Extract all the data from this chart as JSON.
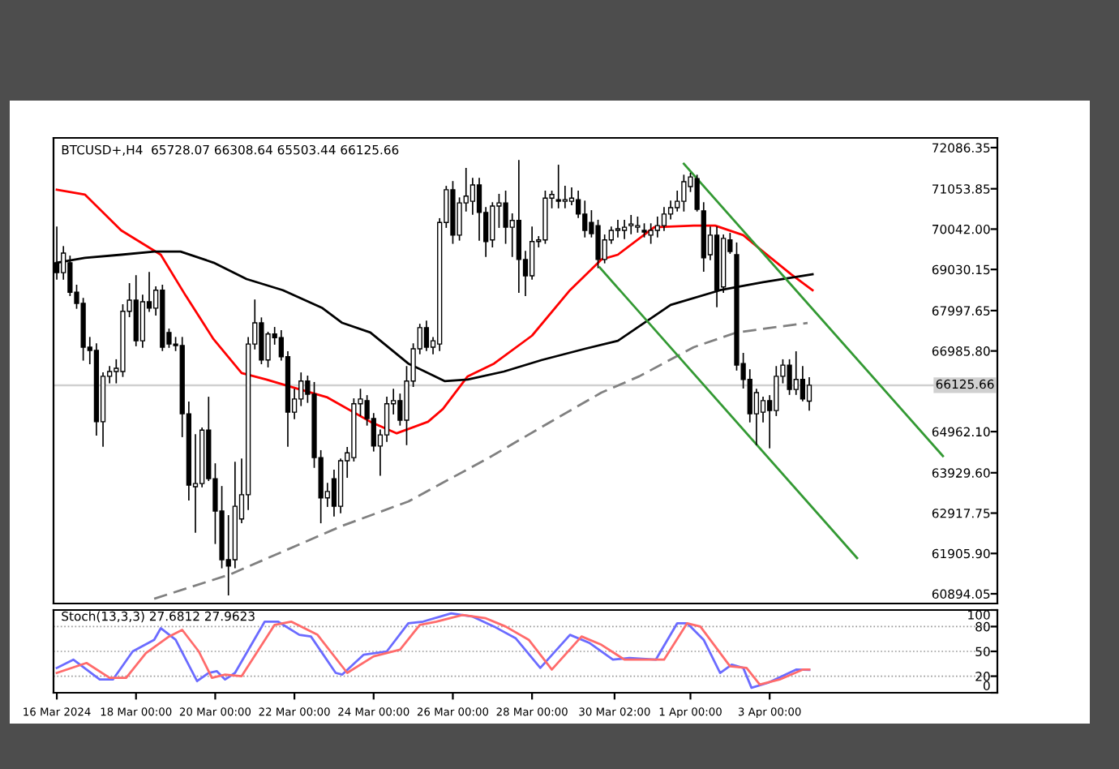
{
  "chart_data": [
    {
      "type": "candlestick",
      "title": "BTCUSD+,H4  65728.07 66308.64 65503.44 66125.66",
      "x": [
        "2024-03-16T00:00",
        "2024-03-16T04:00",
        "2024-03-16T08:00",
        "2024-03-16T12:00",
        "2024-03-16T16:00",
        "2024-03-16T20:00",
        "2024-03-17T00:00",
        "2024-03-17T04:00",
        "2024-03-17T08:00",
        "2024-03-17T12:00",
        "2024-03-17T16:00",
        "2024-03-17T20:00",
        "2024-03-18T00:00",
        "2024-03-18T04:00",
        "2024-03-18T08:00",
        "2024-03-18T12:00",
        "2024-03-18T16:00",
        "2024-03-18T20:00",
        "2024-03-19T00:00",
        "2024-03-19T04:00",
        "2024-03-19T08:00",
        "2024-03-19T12:00",
        "2024-03-19T16:00",
        "2024-03-19T20:00",
        "2024-03-20T00:00",
        "2024-03-20T04:00",
        "2024-03-20T08:00",
        "2024-03-20T12:00",
        "2024-03-20T16:00",
        "2024-03-20T20:00",
        "2024-03-21T00:00",
        "2024-03-21T04:00",
        "2024-03-21T08:00",
        "2024-03-21T12:00",
        "2024-03-21T16:00",
        "2024-03-21T20:00",
        "2024-03-22T00:00",
        "2024-03-22T04:00",
        "2024-03-22T08:00",
        "2024-03-22T12:00",
        "2024-03-22T16:00",
        "2024-03-22T20:00",
        "2024-03-23T00:00",
        "2024-03-23T04:00",
        "2024-03-23T08:00",
        "2024-03-23T12:00",
        "2024-03-23T16:00",
        "2024-03-23T20:00",
        "2024-03-24T00:00",
        "2024-03-24T04:00",
        "2024-03-24T08:00",
        "2024-03-24T12:00",
        "2024-03-24T16:00",
        "2024-03-24T20:00",
        "2024-03-25T00:00",
        "2024-03-25T04:00",
        "2024-03-25T08:00",
        "2024-03-25T12:00",
        "2024-03-25T16:00",
        "2024-03-25T20:00",
        "2024-03-26T00:00",
        "2024-03-26T04:00",
        "2024-03-26T08:00",
        "2024-03-26T12:00",
        "2024-03-26T16:00",
        "2024-03-26T20:00",
        "2024-03-27T00:00",
        "2024-03-27T04:00",
        "2024-03-27T08:00",
        "2024-03-27T12:00",
        "2024-03-27T16:00",
        "2024-03-27T20:00",
        "2024-03-28T00:00",
        "2024-03-28T04:00",
        "2024-03-28T08:00",
        "2024-03-28T12:00",
        "2024-03-28T16:00",
        "2024-03-28T20:00",
        "2024-03-29T00:00",
        "2024-03-29T04:00",
        "2024-03-29T08:00",
        "2024-03-29T12:00",
        "2024-03-29T16:00",
        "2024-03-29T20:00",
        "2024-03-30T00:00",
        "2024-03-30T04:00",
        "2024-03-30T08:00",
        "2024-03-30T12:00",
        "2024-03-30T16:00",
        "2024-03-30T20:00",
        "2024-03-31T00:00",
        "2024-03-31T04:00",
        "2024-03-31T08:00",
        "2024-03-31T12:00",
        "2024-03-31T16:00",
        "2024-03-31T20:00",
        "2024-04-01T00:00",
        "2024-04-01T04:00",
        "2024-04-01T08:00",
        "2024-04-01T12:00",
        "2024-04-01T16:00",
        "2024-04-01T20:00",
        "2024-04-02T00:00",
        "2024-04-02T04:00",
        "2024-04-02T08:00",
        "2024-04-02T12:00",
        "2024-04-02T16:00",
        "2024-04-02T20:00",
        "2024-04-03T00:00",
        "2024-04-03T04:00",
        "2024-04-03T08:00",
        "2024-04-03T12:00",
        "2024-04-03T16:00",
        "2024-04-03T20:00",
        "2024-04-04T00:00"
      ],
      "ohlc": [
        [
          69200,
          70090,
          68790,
          68950
        ],
        [
          68950,
          69600,
          68790,
          69440
        ],
        [
          69200,
          69360,
          68380,
          68460
        ],
        [
          68460,
          68630,
          68060,
          68180
        ],
        [
          68180,
          68300,
          66760,
          67080
        ],
        [
          67080,
          67320,
          66670,
          67000
        ],
        [
          67000,
          67160,
          64880,
          65210
        ],
        [
          65210,
          66430,
          64600,
          66350
        ],
        [
          66350,
          66590,
          66190,
          66470
        ],
        [
          66470,
          66760,
          66190,
          66550
        ],
        [
          66470,
          68140,
          66350,
          67980
        ],
        [
          67980,
          68670,
          67850,
          68260
        ],
        [
          68260,
          68870,
          67120,
          67240
        ],
        [
          67240,
          68380,
          67080,
          68220
        ],
        [
          68220,
          68950,
          67980,
          68060
        ],
        [
          68060,
          68590,
          67890,
          68510
        ],
        [
          68510,
          68630,
          67000,
          67080
        ],
        [
          67450,
          67530,
          67080,
          67160
        ],
        [
          67160,
          67320,
          67000,
          67120
        ],
        [
          67120,
          67320,
          64840,
          65410
        ],
        [
          65410,
          65700,
          63250,
          63620
        ],
        [
          63580,
          64880,
          62440,
          63660
        ],
        [
          63660,
          65050,
          63580,
          65000
        ],
        [
          65000,
          65820,
          63740,
          63780
        ],
        [
          63780,
          64150,
          62160,
          62970
        ],
        [
          62970,
          63580,
          61550,
          61750
        ],
        [
          61750,
          62850,
          60870,
          61590
        ],
        [
          61750,
          64190,
          61550,
          63090
        ],
        [
          62770,
          64270,
          62680,
          63380
        ],
        [
          63380,
          67320,
          63010,
          67160
        ],
        [
          67160,
          68260,
          67040,
          67690
        ],
        [
          67690,
          67810,
          66670,
          66760
        ],
        [
          66760,
          67450,
          66590,
          67410
        ],
        [
          67410,
          67570,
          67160,
          67320
        ],
        [
          67320,
          67490,
          66760,
          66840
        ],
        [
          66840,
          66960,
          64600,
          65450
        ],
        [
          65450,
          66020,
          65290,
          65780
        ],
        [
          65780,
          66430,
          65620,
          66230
        ],
        [
          66230,
          66350,
          65700,
          65900
        ],
        [
          65900,
          66190,
          64070,
          64310
        ],
        [
          64310,
          64480,
          62680,
          63300
        ],
        [
          63300,
          63660,
          63090,
          63460
        ],
        [
          63780,
          63990,
          62850,
          63090
        ],
        [
          63090,
          64270,
          62930,
          64230
        ],
        [
          64230,
          64560,
          63820,
          64430
        ],
        [
          64310,
          65780,
          64230,
          65660
        ],
        [
          65660,
          66020,
          65370,
          65780
        ],
        [
          65740,
          65860,
          65130,
          65290
        ],
        [
          65290,
          65410,
          64480,
          64600
        ],
        [
          64600,
          65000,
          63870,
          64880
        ],
        [
          64880,
          65820,
          64720,
          65660
        ],
        [
          65660,
          66020,
          65410,
          65740
        ],
        [
          65740,
          65900,
          65130,
          65250
        ],
        [
          65250,
          66590,
          64640,
          66230
        ],
        [
          66230,
          67160,
          66100,
          67040
        ],
        [
          67040,
          67650,
          66920,
          67570
        ],
        [
          67570,
          67730,
          67000,
          67080
        ],
        [
          67080,
          67320,
          66920,
          67240
        ],
        [
          67160,
          70300,
          67000,
          70210
        ],
        [
          70210,
          71110,
          70090,
          71030
        ],
        [
          71030,
          71230,
          69690,
          69890
        ],
        [
          69890,
          70820,
          69770,
          70700
        ],
        [
          70700,
          71560,
          70500,
          70870
        ],
        [
          70740,
          71310,
          70420,
          71150
        ],
        [
          71150,
          71310,
          69770,
          70460
        ],
        [
          70460,
          70580,
          69360,
          69730
        ],
        [
          69770,
          70700,
          69600,
          70620
        ],
        [
          70620,
          70910,
          70090,
          70700
        ],
        [
          70700,
          70990,
          69690,
          70090
        ],
        [
          70090,
          70420,
          69360,
          70260
        ],
        [
          70260,
          71760,
          68460,
          69280
        ],
        [
          69280,
          69480,
          68380,
          68870
        ],
        [
          68870,
          70090,
          68790,
          69730
        ],
        [
          69730,
          69850,
          69600,
          69770
        ],
        [
          69770,
          70990,
          69690,
          70820
        ],
        [
          70820,
          70990,
          70580,
          70910
        ],
        [
          70780,
          71640,
          70580,
          70740
        ],
        [
          70740,
          71110,
          70580,
          70780
        ],
        [
          70740,
          71070,
          70660,
          70820
        ],
        [
          70780,
          70990,
          70340,
          70420
        ],
        [
          70420,
          70740,
          69850,
          70010
        ],
        [
          70210,
          70500,
          69850,
          69930
        ],
        [
          70130,
          70260,
          69080,
          69280
        ],
        [
          69280,
          69890,
          69200,
          69770
        ],
        [
          69770,
          70090,
          69690,
          70010
        ],
        [
          70010,
          70260,
          69850,
          70050
        ],
        [
          70010,
          70260,
          69810,
          70090
        ],
        [
          70130,
          70380,
          69930,
          70170
        ],
        [
          70090,
          70340,
          69970,
          70130
        ],
        [
          70010,
          70170,
          69850,
          69970
        ],
        [
          69890,
          70170,
          69690,
          70010
        ],
        [
          70010,
          70340,
          69850,
          70130
        ],
        [
          70130,
          70580,
          70010,
          70420
        ],
        [
          70420,
          70740,
          70300,
          70580
        ],
        [
          70580,
          70990,
          70500,
          70740
        ],
        [
          70740,
          71390,
          70500,
          71230
        ],
        [
          71110,
          71440,
          70990,
          71350
        ],
        [
          71310,
          71390,
          70500,
          70540
        ],
        [
          70500,
          70700,
          68990,
          69320
        ],
        [
          69400,
          70090,
          69280,
          69890
        ],
        [
          69890,
          70090,
          68100,
          68510
        ],
        [
          68590,
          69890,
          68460,
          69810
        ],
        [
          69770,
          69930,
          69440,
          69480
        ],
        [
          69400,
          69690,
          66510,
          66630
        ],
        [
          66670,
          66920,
          66060,
          66270
        ],
        [
          66270,
          66510,
          65210,
          65410
        ],
        [
          65410,
          66020,
          64640,
          65940
        ],
        [
          65450,
          65820,
          65210,
          65740
        ],
        [
          65740,
          65860,
          64560,
          65490
        ],
        [
          65490,
          66590,
          65370,
          66350
        ],
        [
          66350,
          66760,
          66190,
          66630
        ],
        [
          66630,
          66760,
          65900,
          66020
        ],
        [
          66020,
          66960,
          65900,
          66270
        ],
        [
          66270,
          66590,
          65740,
          65780
        ],
        [
          65728.07,
          66308.64,
          65503.44,
          66125.66
        ]
      ],
      "series": [
        {
          "type": "line",
          "color": "#ff0000",
          "x": [
            "2024-03-16T00:00",
            "2024-03-16T17:00",
            "2024-03-17T15:00",
            "2024-03-18T15:00",
            "2024-03-19T06:00",
            "2024-03-19T23:00",
            "2024-03-20T16:00",
            "2024-03-21T07:00",
            "2024-03-22T00:00",
            "2024-03-22T20:00",
            "2024-03-23T22:00",
            "2024-03-24T14:00",
            "2024-03-25T09:00",
            "2024-03-25T18:00",
            "2024-03-26T09:00",
            "2024-03-27T01:00",
            "2024-03-28T00:00",
            "2024-03-28T23:00",
            "2024-03-29T18:00",
            "2024-03-30T04:00",
            "2024-03-31T02:00",
            "2024-04-01T02:00",
            "2024-04-01T15:00",
            "2024-04-02T08:00",
            "2024-04-02T20:00",
            "2024-04-03T13:00",
            "2024-04-04T02:00"
          ],
          "values": [
            71030,
            70910,
            70010,
            69400,
            68380,
            67280,
            66430,
            66270,
            66060,
            65820,
            65210,
            64920,
            65210,
            65530,
            66350,
            66670,
            67370,
            68510,
            69280,
            69400,
            70090,
            70130,
            70130,
            69890,
            69480,
            68910,
            68510
          ]
        },
        {
          "type": "line",
          "color": "#000000",
          "x": [
            "2024-03-16T00:00",
            "2024-03-16T17:00",
            "2024-03-17T15:00",
            "2024-03-18T11:00",
            "2024-03-19T03:00",
            "2024-03-19T23:00",
            "2024-03-20T19:00",
            "2024-03-21T17:00",
            "2024-03-22T17:00",
            "2024-03-23T05:00",
            "2024-03-23T22:00",
            "2024-03-24T21:00",
            "2024-03-25T19:00",
            "2024-03-26T09:00",
            "2024-03-27T07:00",
            "2024-03-28T06:00",
            "2024-03-29T08:00",
            "2024-03-30T04:00",
            "2024-03-31T12:00",
            "2024-04-01T18:00",
            "2024-04-02T20:00",
            "2024-04-04T02:00"
          ],
          "values": [
            69200,
            69320,
            69400,
            69480,
            69480,
            69200,
            68790,
            68510,
            68060,
            67690,
            67450,
            66670,
            66230,
            66270,
            66470,
            66760,
            67040,
            67240,
            68140,
            68510,
            68710,
            68910
          ]
        },
        {
          "type": "line",
          "color": "#808080",
          "line_style": "dashed",
          "x": [
            "2024-03-18T11:00",
            "2024-03-20T09:00",
            "2024-03-23T05:00",
            "2024-03-24T21:00",
            "2024-03-26T22:00",
            "2024-03-28T13:00",
            "2024-03-29T18:00",
            "2024-03-30T17:00",
            "2024-04-01T02:00",
            "2024-04-02T04:00",
            "2024-04-03T23:00"
          ],
          "values": [
            60770,
            61380,
            62600,
            63210,
            64310,
            65250,
            65940,
            66350,
            67080,
            67450,
            67690
          ]
        },
        {
          "type": "line",
          "color": "#339933",
          "x": [
            "2024-03-31T20:00",
            "2024-04-07T09:00"
          ],
          "values": [
            71680,
            64350
          ]
        },
        {
          "type": "line",
          "color": "#339933",
          "x": [
            "2024-03-29T17:00",
            "2024-04-05T05:00"
          ],
          "values": [
            69080,
            61790
          ]
        }
      ],
      "xlim": [
        "2024-03-15T22:00",
        "2024-04-08T18:00"
      ],
      "ylim": [
        60650,
        72330
      ],
      "yticks": [
        {
          "value": 72086.35,
          "label": "72086.35"
        },
        {
          "value": 71053.85,
          "label": "71053.85"
        },
        {
          "value": 70042.0,
          "label": "70042.00"
        },
        {
          "value": 69030.15,
          "label": "69030.15"
        },
        {
          "value": 67997.65,
          "label": "67997.65"
        },
        {
          "value": 66985.8,
          "label": "66985.80"
        },
        {
          "value": 64962.1,
          "label": "64962.10"
        },
        {
          "value": 63929.6,
          "label": "63929.60"
        },
        {
          "value": 62917.75,
          "label": "62917.75"
        },
        {
          "value": 61905.9,
          "label": "61905.90"
        },
        {
          "value": 60894.05,
          "label": "60894.05"
        }
      ],
      "ref_lines": [
        {
          "axis": "y",
          "value": 66125.66,
          "label": "66125.66",
          "color": "#d0d0d0"
        }
      ],
      "tick_labels": "y"
    },
    {
      "type": "line",
      "title": "Stoch(13,3,3) 27.6812 27.9623",
      "series": [
        {
          "color": "#6b6bff",
          "x": [
            "2024-03-16T00:00",
            "2024-03-16T10:00",
            "2024-03-17T02:00",
            "2024-03-17T10:00",
            "2024-03-17T22:00",
            "2024-03-18T11:00",
            "2024-03-18T15:00",
            "2024-03-19T00:00",
            "2024-03-19T13:00",
            "2024-03-19T20:00",
            "2024-03-20T01:00",
            "2024-03-20T06:00",
            "2024-03-20T12:00",
            "2024-03-21T06:00",
            "2024-03-21T14:00",
            "2024-03-22T03:00",
            "2024-03-22T10:00",
            "2024-03-23T01:00",
            "2024-03-23T05:00",
            "2024-03-23T18:00",
            "2024-03-24T08:00",
            "2024-03-24T21:00",
            "2024-03-25T06:00",
            "2024-03-25T23:00",
            "2024-03-26T12:00",
            "2024-03-27T01:00",
            "2024-03-27T14:00",
            "2024-03-28T05:00",
            "2024-03-28T23:00",
            "2024-03-29T11:00",
            "2024-03-30T01:00",
            "2024-03-30T11:00",
            "2024-03-31T03:00",
            "2024-03-31T16:00",
            "2024-03-31T22:00",
            "2024-04-01T08:00",
            "2024-04-01T18:00",
            "2024-04-02T01:00",
            "2024-04-02T08:00",
            "2024-04-02T13:00",
            "2024-04-02T23:00",
            "2024-04-03T16:00",
            "2024-04-04T00:00"
          ],
          "values": [
            30,
            40,
            16,
            16,
            50,
            64,
            78,
            64,
            14,
            24,
            26,
            16,
            24,
            86,
            86,
            70,
            68,
            24,
            22,
            46,
            50,
            84,
            86,
            96,
            92,
            80,
            66,
            30,
            70,
            60,
            40,
            42,
            40,
            84,
            84,
            64,
            24,
            34,
            30,
            6,
            12,
            28,
            27.6812
          ]
        },
        {
          "color": "#ff6b6b",
          "x": [
            "2024-03-16T00:00",
            "2024-03-16T18:00",
            "2024-03-17T08:00",
            "2024-03-17T18:00",
            "2024-03-18T06:00",
            "2024-03-18T20:00",
            "2024-03-19T04:00",
            "2024-03-19T14:00",
            "2024-03-19T22:00",
            "2024-03-20T06:00",
            "2024-03-20T16:00",
            "2024-03-21T12:00",
            "2024-03-21T22:00",
            "2024-03-22T14:00",
            "2024-03-23T08:00",
            "2024-03-24T00:00",
            "2024-03-24T16:00",
            "2024-03-25T04:00",
            "2024-03-25T14:00",
            "2024-03-26T06:00",
            "2024-03-26T20:00",
            "2024-03-27T08:00",
            "2024-03-27T22:00",
            "2024-03-28T12:00",
            "2024-03-29T06:00",
            "2024-03-29T18:00",
            "2024-03-30T08:00",
            "2024-03-31T08:00",
            "2024-03-31T22:00",
            "2024-04-01T06:00",
            "2024-04-02T00:00",
            "2024-04-02T10:00",
            "2024-04-02T18:00",
            "2024-04-03T06:00",
            "2024-04-03T20:00",
            "2024-04-04T00:00"
          ],
          "values": [
            24,
            36,
            18,
            18,
            48,
            68,
            76,
            50,
            18,
            22,
            20,
            82,
            86,
            70,
            24,
            44,
            52,
            82,
            86,
            94,
            90,
            80,
            64,
            28,
            68,
            58,
            40,
            40,
            84,
            80,
            32,
            30,
            10,
            16,
            28,
            27.9623
          ]
        }
      ],
      "xlim": [
        "2024-03-15T22:00",
        "2024-04-08T18:00"
      ],
      "ylim": [
        0,
        100
      ],
      "yticks": [
        0,
        20,
        50,
        80,
        100
      ],
      "xticks": [
        {
          "value": "2024-03-16T00:00",
          "label": "16 Mar 2024"
        },
        {
          "value": "2024-03-18T00:00",
          "label": "18 Mar 00:00"
        },
        {
          "value": "2024-03-20T00:00",
          "label": "20 Mar 00:00"
        },
        {
          "value": "2024-03-22T00:00",
          "label": "22 Mar 00:00"
        },
        {
          "value": "2024-03-24T00:00",
          "label": "24 Mar 00:00"
        },
        {
          "value": "2024-03-26T00:00",
          "label": "26 Mar 00:00"
        },
        {
          "value": "2024-03-28T00:00",
          "label": "28 Mar 00:00"
        },
        {
          "value": "2024-03-30T02:00",
          "label": "30 Mar 02:00"
        },
        {
          "value": "2024-04-01T00:00",
          "label": "1 Apr 00:00"
        },
        {
          "value": "2024-04-03T00:00",
          "label": "3 Apr 00:00"
        }
      ],
      "grid": "y"
    }
  ]
}
